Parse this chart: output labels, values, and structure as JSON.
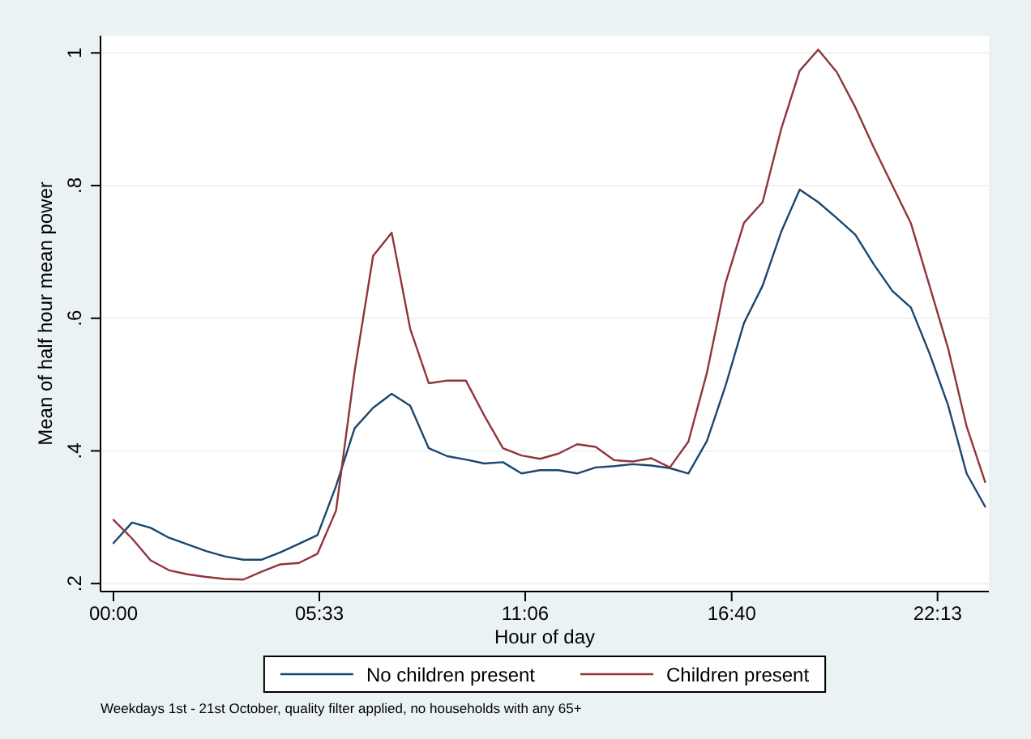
{
  "chart_data": {
    "type": "line",
    "xlabel": "Hour of day",
    "ylabel": "Mean of half hour mean power",
    "x": [
      0,
      0.5,
      1,
      1.5,
      2,
      2.5,
      3,
      3.5,
      4,
      4.5,
      5,
      5.5,
      6,
      6.5,
      7,
      7.5,
      8,
      8.5,
      9,
      9.5,
      10,
      10.5,
      11,
      11.5,
      12,
      12.5,
      13,
      13.5,
      14,
      14.5,
      15,
      15.5,
      16,
      16.5,
      17,
      17.5,
      18,
      18.5,
      19,
      19.5,
      20,
      20.5,
      21,
      21.5,
      22,
      22.5,
      23,
      23.5
    ],
    "series": [
      {
        "name": "No children present",
        "color": "#1a476f",
        "values": [
          0.261,
          0.292,
          0.284,
          0.269,
          0.259,
          0.249,
          0.241,
          0.236,
          0.236,
          0.247,
          0.26,
          0.273,
          0.347,
          0.434,
          0.465,
          0.486,
          0.468,
          0.404,
          0.392,
          0.387,
          0.381,
          0.383,
          0.366,
          0.371,
          0.371,
          0.366,
          0.375,
          0.377,
          0.38,
          0.378,
          0.374,
          0.366,
          0.415,
          0.498,
          0.593,
          0.649,
          0.73,
          0.794,
          0.775,
          0.751,
          0.726,
          0.681,
          0.641,
          0.616,
          0.547,
          0.469,
          0.366,
          0.316
        ]
      },
      {
        "name": "Children present",
        "color": "#90353b",
        "values": [
          0.296,
          0.268,
          0.235,
          0.22,
          0.214,
          0.21,
          0.207,
          0.206,
          0.218,
          0.229,
          0.231,
          0.245,
          0.31,
          0.52,
          0.694,
          0.729,
          0.584,
          0.502,
          0.506,
          0.506,
          0.453,
          0.404,
          0.393,
          0.388,
          0.396,
          0.41,
          0.406,
          0.386,
          0.384,
          0.389,
          0.375,
          0.414,
          0.518,
          0.653,
          0.744,
          0.775,
          0.885,
          0.973,
          1.005,
          0.971,
          0.918,
          0.857,
          0.8,
          0.743,
          0.649,
          0.555,
          0.437,
          0.353
        ]
      }
    ],
    "xlim": [
      -0.35,
      23.6
    ],
    "ylim": [
      0.188,
      1.026
    ],
    "xticks": [
      {
        "value": 0,
        "label": "00:00"
      },
      {
        "value": 5.55,
        "label": "05:33"
      },
      {
        "value": 11.1,
        "label": "11:06"
      },
      {
        "value": 16.6667,
        "label": "16:40"
      },
      {
        "value": 22.2167,
        "label": "22:13"
      }
    ],
    "yticks": [
      {
        "value": 0.2,
        "label": ".2"
      },
      {
        "value": 0.4,
        "label": ".4"
      },
      {
        "value": 0.6,
        "label": ".6"
      },
      {
        "value": 0.8,
        "label": ".8"
      },
      {
        "value": 1,
        "label": "1"
      }
    ],
    "grid": "y",
    "legend": "bottom",
    "line_style": "solid",
    "annotations": [
      "Weekdays 1st - 21st October, quality filter applied, no households with any 65+"
    ]
  }
}
